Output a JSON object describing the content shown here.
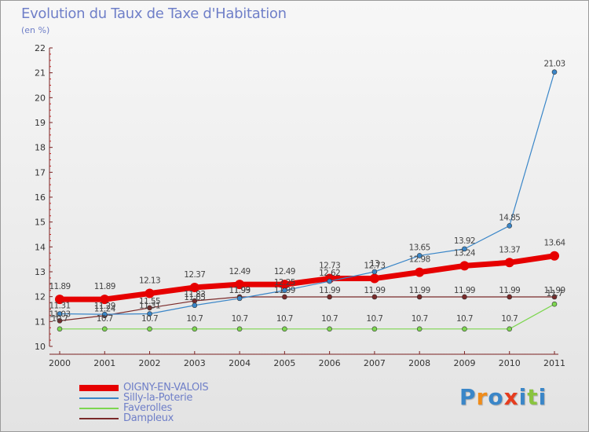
{
  "chart_data": {
    "type": "line",
    "title": "Evolution du Taux de Taxe d'Habitation",
    "subtitle": "(en %)",
    "xlabel": "",
    "ylabel": "",
    "x": [
      "2000",
      "2001",
      "2002",
      "2003",
      "2004",
      "2005",
      "2006",
      "2007",
      "2008",
      "2009",
      "2010",
      "2011"
    ],
    "ylim": [
      10,
      22
    ],
    "yticks": [
      "10",
      "11",
      "12",
      "13",
      "14",
      "15",
      "16",
      "17",
      "18",
      "19",
      "20",
      "21",
      "22"
    ],
    "grid": false,
    "legend": "bottom-left",
    "series": [
      {
        "name": "OIGNY-EN-VALOIS",
        "color": "#e60000",
        "values": [
          11.89,
          11.89,
          12.13,
          12.37,
          12.49,
          12.49,
          12.73,
          12.73,
          12.98,
          13.24,
          13.37,
          13.64
        ]
      },
      {
        "name": "Silly-la-Poterie",
        "color": "#3a86c8",
        "values": [
          11.31,
          11.29,
          11.31,
          11.65,
          11.93,
          12.25,
          12.62,
          13.0,
          13.65,
          13.92,
          14.85,
          21.03
        ]
      },
      {
        "name": "Faverolles",
        "color": "#7dd650",
        "values": [
          10.7,
          10.7,
          10.7,
          10.7,
          10.7,
          10.7,
          10.7,
          10.7,
          10.7,
          10.7,
          10.7,
          11.7
        ]
      },
      {
        "name": "Dampleux",
        "color": "#7a2a2a",
        "values": [
          11.03,
          11.24,
          11.55,
          11.83,
          11.99,
          11.99,
          11.99,
          11.99,
          11.99,
          11.99,
          11.99,
          11.99
        ]
      }
    ],
    "value_labels": {
      "OIGNY-EN-VALOIS": [
        "11.89",
        "11.89",
        "12.13",
        "12.37",
        "12.49",
        "12.49",
        "12.73",
        "12.73",
        "12.98",
        "13.24",
        "13.37",
        "13.64"
      ],
      "Silly-la-Poterie": [
        "11.31",
        "11.29",
        "11.31",
        "11.65",
        "11.93",
        "12.25",
        "12.62",
        "13",
        "13.65",
        "13.92",
        "14.85",
        "21.03"
      ],
      "Faverolles": [
        "10.7",
        "10.7",
        "10.7",
        "10.7",
        "10.7",
        "10.7",
        "10.7",
        "10.7",
        "10.7",
        "10.7",
        "10.7",
        "11.7"
      ],
      "Dampleux": [
        "11.03",
        "11.24",
        "11.55",
        "11.83",
        "11.99",
        "11.99",
        "11.99",
        "11.99",
        "11.99",
        "11.99",
        "11.99",
        "11.99"
      ]
    }
  },
  "logo": {
    "letters": [
      "P",
      "r",
      "o",
      "x",
      "i",
      "t",
      "i"
    ],
    "colors": [
      "#3a86c8",
      "#f08c1a",
      "#3a86c8",
      "#e63c1e",
      "#3a86c8",
      "#8ac43f",
      "#3a86c8"
    ]
  }
}
